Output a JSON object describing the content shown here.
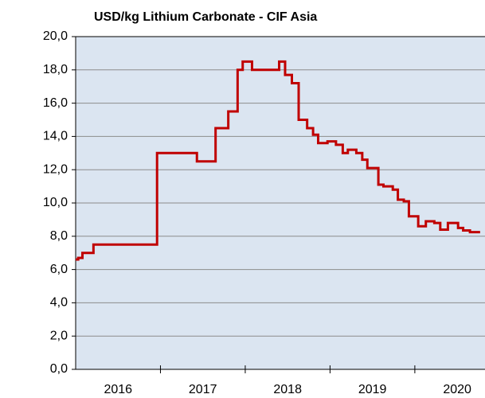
{
  "chart_data": {
    "type": "line",
    "title": "USD/kg Lithium Carbonate - CIF Asia",
    "x": [
      2016.0,
      2016.03,
      2016.08,
      2016.21,
      2016.96,
      2017.43,
      2017.65,
      2017.8,
      2017.91,
      2017.97,
      2018.08,
      2018.4,
      2018.47,
      2018.55,
      2018.63,
      2018.73,
      2018.8,
      2018.86,
      2018.97,
      2019.07,
      2019.15,
      2019.21,
      2019.31,
      2019.38,
      2019.44,
      2019.57,
      2019.63,
      2019.74,
      2019.8,
      2019.87,
      2019.93,
      2020.04,
      2020.13,
      2020.23,
      2020.3,
      2020.39,
      2020.51,
      2020.57,
      2020.65,
      2020.77
    ],
    "series": [
      {
        "color": "#c00000",
        "values": [
          6.6,
          6.7,
          7.0,
          7.5,
          13.0,
          12.5,
          14.5,
          15.5,
          18.0,
          18.5,
          18.0,
          18.5,
          17.7,
          17.2,
          15.0,
          14.5,
          14.1,
          13.6,
          13.7,
          13.5,
          13.0,
          13.2,
          13.0,
          12.6,
          12.1,
          11.1,
          11.0,
          10.8,
          10.2,
          10.1,
          9.2,
          8.6,
          8.9,
          8.8,
          8.4,
          8.8,
          8.5,
          8.35,
          8.25,
          8.25
        ]
      }
    ],
    "step": "post",
    "xlim": [
      2016,
      2020.79
    ],
    "xticks": [
      2016,
      2017,
      2018,
      2019,
      2020
    ],
    "ylim": [
      0,
      20
    ],
    "yticks": [
      {
        "value": 0,
        "label": "0,0"
      },
      {
        "value": 2,
        "label": "2,0"
      },
      {
        "value": 4,
        "label": "4,0"
      },
      {
        "value": 6,
        "label": "6,0"
      },
      {
        "value": 8,
        "label": "8,0"
      },
      {
        "value": 10,
        "label": "10,0"
      },
      {
        "value": 12,
        "label": "12,0"
      },
      {
        "value": 14,
        "label": "14,0"
      },
      {
        "value": 16,
        "label": "16,0"
      },
      {
        "value": 18,
        "label": "18,0"
      },
      {
        "value": 20,
        "label": "20,0"
      }
    ],
    "grid": true
  }
}
